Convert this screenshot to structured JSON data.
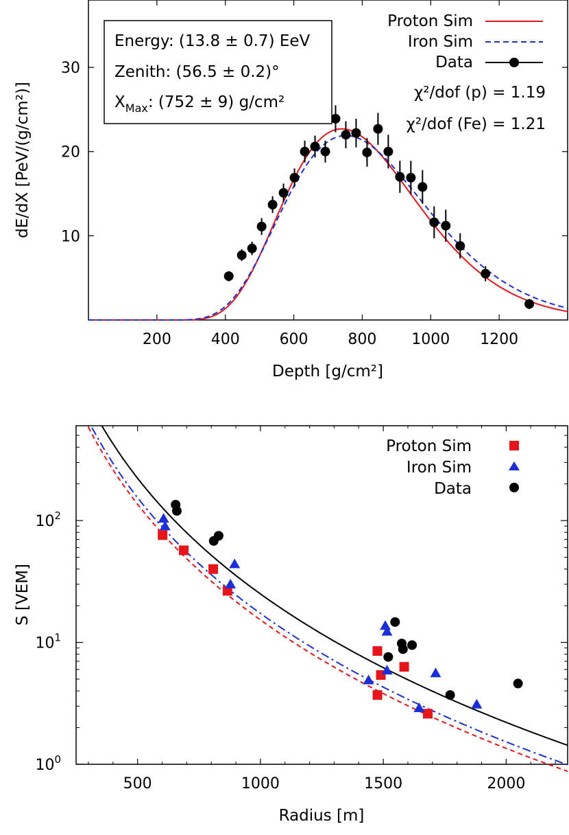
{
  "chart_data": [
    {
      "type": "scatter",
      "xlabel": "Depth [g/cm²]",
      "ylabel": "dE/dX [PeV/(g/cm²)]",
      "xlim": [
        0,
        1400
      ],
      "ylim": [
        0,
        38
      ],
      "x_ticks": [
        200,
        400,
        600,
        800,
        1000,
        1200
      ],
      "y_ticks": [
        10,
        20,
        30
      ],
      "grid": false,
      "legend_position": "top-right",
      "annotation_box": {
        "energy": "Energy: (13.8 ± 0.7) EeV",
        "zenith": "Zenith: (56.5 ± 0.2)°",
        "xmax": "X",
        "xmax_sub": "Max",
        "xmax_rest": ": (752 ± 9) g/cm²"
      },
      "chi2": [
        {
          "label": "χ²/dof (p) = 1.19"
        },
        {
          "label": "χ²/dof (Fe) = 1.21"
        }
      ],
      "series": [
        {
          "name": "Proton Sim",
          "style": "solid-line",
          "color": "#e8141b",
          "xmax": 740,
          "peak": 22.7,
          "x0": 220,
          "lam": 75
        },
        {
          "name": "Iron Sim",
          "style": "dashed-line",
          "color": "#1a2fd6",
          "xmax": 752,
          "peak": 21.9,
          "x0": 200,
          "lam": 80
        },
        {
          "name": "Data",
          "style": "points-errorbars",
          "color": "#000000",
          "points": [
            [
              410,
              5.2,
              0.6
            ],
            [
              448,
              7.7,
              0.7
            ],
            [
              478,
              8.5,
              0.8
            ],
            [
              506,
              11.1,
              1.0
            ],
            [
              538,
              13.7,
              1.0
            ],
            [
              570,
              15.1,
              1.1
            ],
            [
              602,
              16.9,
              1.1
            ],
            [
              632,
              20.0,
              1.3
            ],
            [
              662,
              20.6,
              1.3
            ],
            [
              692,
              20.0,
              1.3
            ],
            [
              722,
              23.9,
              1.6
            ],
            [
              752,
              22.0,
              1.6
            ],
            [
              782,
              22.2,
              1.7
            ],
            [
              814,
              19.9,
              1.7
            ],
            [
              846,
              22.7,
              1.9
            ],
            [
              876,
              20.0,
              2.0
            ],
            [
              910,
              17.0,
              1.9
            ],
            [
              942,
              16.9,
              2.0
            ],
            [
              976,
              15.8,
              2.0
            ],
            [
              1010,
              11.6,
              1.9
            ],
            [
              1044,
              11.2,
              1.9
            ],
            [
              1086,
              8.8,
              1.5
            ],
            [
              1160,
              5.5,
              0.9
            ],
            [
              1288,
              1.9,
              0.6
            ]
          ]
        }
      ]
    },
    {
      "type": "scatter",
      "xlabel": "Radius [m]",
      "ylabel": "S [VEM]",
      "xlim": [
        250,
        2250
      ],
      "ylim": [
        1,
        600
      ],
      "y_scale": "log",
      "x_ticks": [
        500,
        1000,
        1500,
        2000
      ],
      "y_ticks": [
        {
          "base": "10",
          "exp": "0",
          "value": 1
        },
        {
          "base": "10",
          "exp": "1",
          "value": 10
        },
        {
          "base": "10",
          "exp": "2",
          "value": 100
        }
      ],
      "grid": false,
      "legend_position": "top-right",
      "series": [
        {
          "name": "Proton Sim",
          "marker": "square",
          "color": "#e8141b",
          "fit": {
            "S1000": 15.3,
            "beta": 2.1,
            "gamma": 0.5
          },
          "points": [
            [
              602,
              76
            ],
            [
              688,
              57
            ],
            [
              808,
              40
            ],
            [
              866,
              26.5
            ],
            [
              1476,
              8.5
            ],
            [
              1476,
              3.7
            ],
            [
              1490,
              5.4
            ],
            [
              1585,
              6.3
            ],
            [
              1681,
              2.6
            ]
          ]
        },
        {
          "name": "Iron Sim",
          "marker": "triangle",
          "color": "#1a2fd6",
          "fit": {
            "S1000": 17.3,
            "beta": 2.1,
            "gamma": 0.5
          },
          "points": [
            [
              606,
              104
            ],
            [
              612,
              90
            ],
            [
              878,
              30
            ],
            [
              895,
              44
            ],
            [
              1440,
              4.9
            ],
            [
              1508,
              13.7
            ],
            [
              1515,
              12.3
            ],
            [
              1515,
              5.9
            ],
            [
              1646,
              2.9
            ],
            [
              1713,
              5.6
            ],
            [
              1880,
              3.1
            ]
          ]
        },
        {
          "name": "Data",
          "marker": "circle",
          "color": "#000000",
          "fit": {
            "S1000": 25.0,
            "beta": 2.1,
            "gamma": 0.5
          },
          "points": [
            [
              655,
              135
            ],
            [
              660,
              120
            ],
            [
              810,
              68
            ],
            [
              830,
              75
            ],
            [
              1520,
              7.6
            ],
            [
              1548,
              14.7
            ],
            [
              1575,
              9.8
            ],
            [
              1580,
              8.8
            ],
            [
              1617,
              9.5
            ],
            [
              1772,
              3.7
            ],
            [
              2048,
              4.6
            ]
          ]
        }
      ]
    }
  ]
}
